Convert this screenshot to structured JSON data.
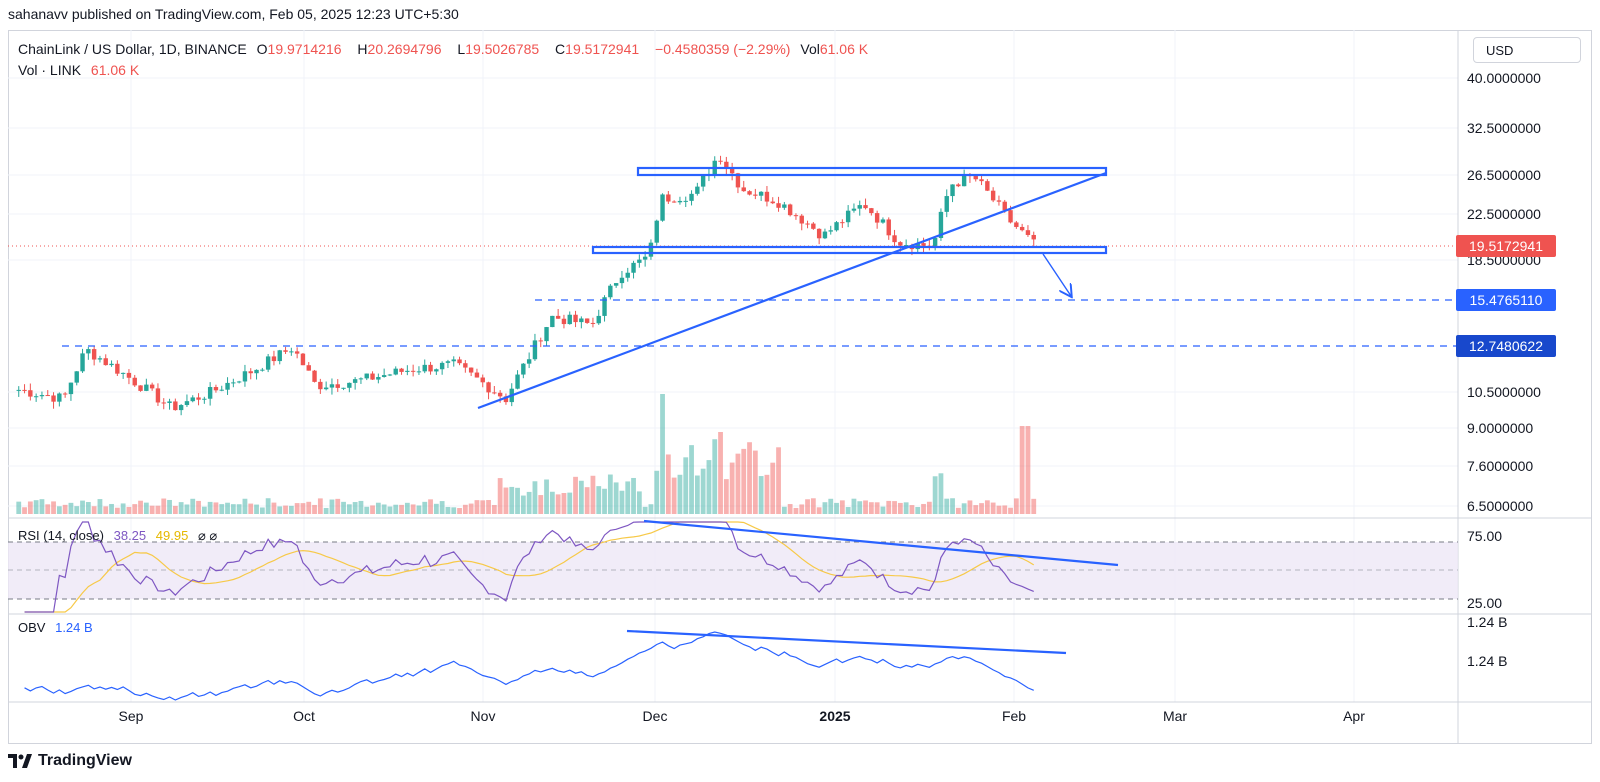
{
  "header": {
    "published": "sahanavv published on TradingView.com, Feb 05, 2025 12:23 UTC+5:30"
  },
  "legend": {
    "symbol": "ChainLink / US Dollar, 1D, BINANCE",
    "open_label": "O",
    "open": "19.9714216",
    "high_label": "H",
    "high": "20.2694796",
    "low_label": "L",
    "low": "19.5026785",
    "close_label": "C",
    "close": "19.5172941",
    "change": "−0.4580359 (−2.29%)",
    "vol_label": "Vol",
    "vol": "61.06 K",
    "vol_line_label": "Vol · LINK",
    "vol_line_value": "61.06 K"
  },
  "currency": "USD",
  "footer": {
    "brand": "TradingView"
  },
  "colors": {
    "up": "#26a69a",
    "down": "#ef5350",
    "drawing": "#2962ff",
    "rsi": "#7e57c2",
    "rsi_ma": "#f7c948",
    "obv": "#2962ff"
  },
  "chart_data": [
    {
      "type": "candlestick",
      "title": "ChainLink / US Dollar, 1D, BINANCE",
      "price_axis_labels": [
        "40.0000000",
        "32.5000000",
        "26.5000000",
        "22.5000000",
        "18.5000000",
        "10.5000000",
        "9.0000000",
        "7.6000000",
        "6.5000000"
      ],
      "time_axis_labels": [
        "Sep",
        "Oct",
        "Nov",
        "Dec",
        "2025",
        "Feb",
        "Mar",
        "Apr"
      ],
      "last_price": "19.5172941",
      "horizontal_levels": [
        "15.4765110",
        "12.7480622"
      ],
      "ohlc_last": {
        "open": 19.9714216,
        "high": 20.2694796,
        "low": 19.5026785,
        "close": 19.5172941
      },
      "close_path": [
        [
          "Aug 12",
          10.6
        ],
        [
          "Aug 20",
          10.2
        ],
        [
          "Aug 24",
          12.6
        ],
        [
          "Sep 1",
          11.1
        ],
        [
          "Sep 8",
          9.8
        ],
        [
          "Sep 15",
          10.5
        ],
        [
          "Sep 22",
          11.5
        ],
        [
          "Sep 29",
          12.7
        ],
        [
          "Oct 3",
          10.8
        ],
        [
          "Oct 10",
          11.0
        ],
        [
          "Oct 20",
          11.6
        ],
        [
          "Oct 27",
          11.8
        ],
        [
          "Nov 5",
          10.2
        ],
        [
          "Nov 9",
          12.2
        ],
        [
          "Nov 13",
          14.5
        ],
        [
          "Nov 20",
          14.0
        ],
        [
          "Nov 25",
          17.5
        ],
        [
          "Nov 30",
          18.8
        ],
        [
          "Dec 2",
          24.0
        ],
        [
          "Dec 8",
          24.5
        ],
        [
          "Dec 12",
          29.0
        ],
        [
          "Dec 16",
          25.0
        ],
        [
          "Dec 22",
          23.8
        ],
        [
          "Dec 30",
          20.5
        ],
        [
          "Jan 6",
          23.5
        ],
        [
          "Jan 12",
          20.0
        ],
        [
          "Jan 18",
          19.6
        ],
        [
          "Jan 21",
          25.5
        ],
        [
          "Jan 25",
          26.3
        ],
        [
          "Jan 31",
          22.0
        ],
        [
          "Feb 3",
          20.5
        ],
        [
          "Feb 5",
          19.5
        ]
      ],
      "volume_last": "61.06 K"
    },
    {
      "type": "line",
      "title": "RSI (14, close)",
      "values_shown": [
        "38.25",
        "49.95"
      ],
      "axis_labels": [
        "75.00",
        "25.00"
      ],
      "levels": [
        70,
        50,
        30
      ]
    },
    {
      "type": "line",
      "title": "OBV",
      "value_shown": "1.24 B",
      "axis_labels": [
        "1.24 B",
        "1.24 B"
      ]
    }
  ]
}
